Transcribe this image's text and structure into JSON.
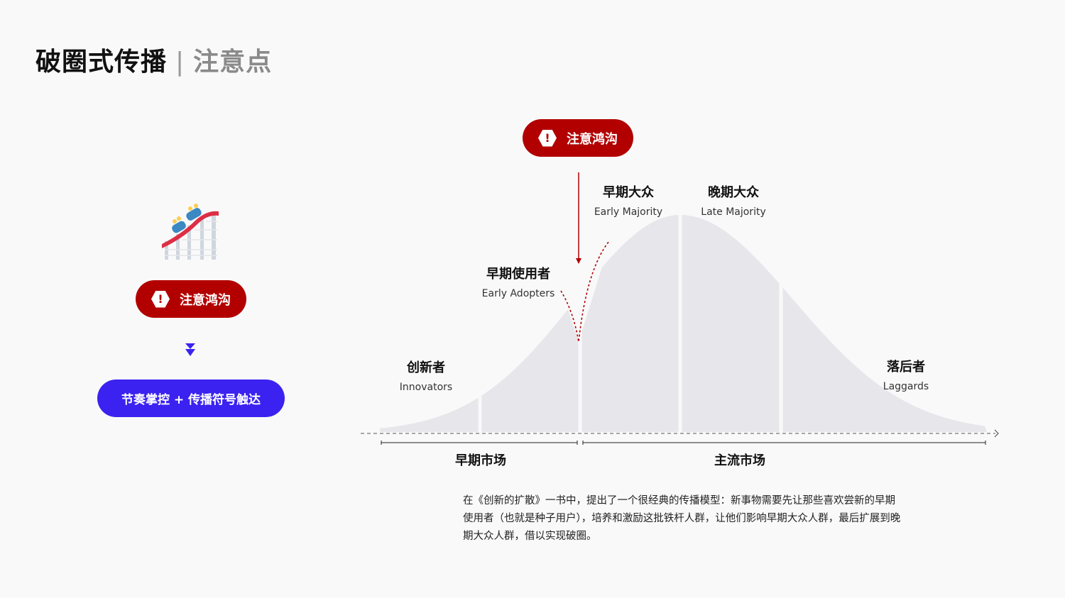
{
  "header": {
    "title": "破圈式传播",
    "separator": "|",
    "subtitle": "注意点"
  },
  "left": {
    "illustration_icon": "roller-coaster-icon",
    "warning_pill": {
      "icon": "exclamation-hexagon-icon",
      "icon_glyph": "!",
      "label": "注意鸿沟"
    },
    "arrow_icon": "double-chevron-down-icon",
    "solution_pill": "节奏掌控 + 传播符号触达"
  },
  "diagram": {
    "chasm_pill": {
      "icon_glyph": "!",
      "label": "注意鸿沟"
    },
    "segments": [
      {
        "cn": "创新者",
        "en": "Innovators"
      },
      {
        "cn": "早期使用者",
        "en": "Early Adopters"
      },
      {
        "cn": "早期大众",
        "en": "Early Majority"
      },
      {
        "cn": "晚期大众",
        "en": "Late Majority"
      },
      {
        "cn": "落后者",
        "en": "Laggards"
      }
    ],
    "markets": {
      "early": "早期市场",
      "mainstream": "主流市场"
    }
  },
  "description": "在《创新的扩散》一书中，提出了一个很经典的传播模型：新事物需要先让那些喜欢尝新的早期使用者（也就是种子用户），培养和激励这批铁杆人群，让他们影响早期大众人群，最后扩展到晚期大众人群，借以实现破圈。",
  "colors": {
    "warning": "#b20000",
    "accent": "#3b22f0",
    "curve": "#e6e6eb",
    "background": "#f9f9fa"
  }
}
